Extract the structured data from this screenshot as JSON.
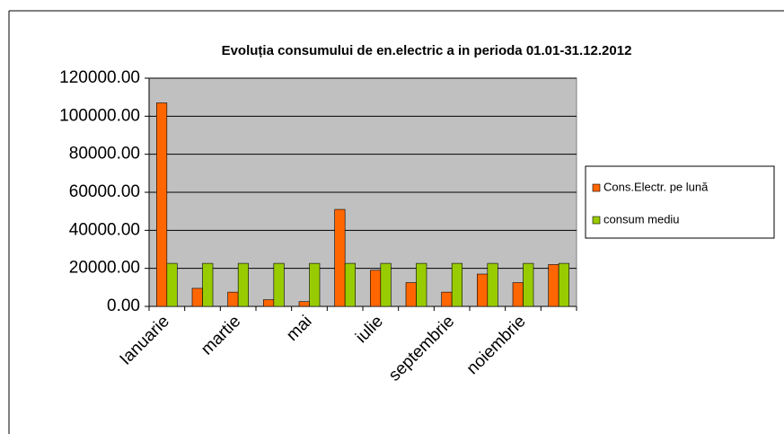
{
  "chart_data": {
    "type": "bar",
    "title": "Evoluția consumului  de en.electric a in perioda 01.01-31.12.2012",
    "categories": [
      "Ianuarie",
      null,
      "martie",
      null,
      "mai",
      null,
      "iulie",
      null,
      "septembrie",
      null,
      "noiembrie",
      null
    ],
    "series": [
      {
        "name": "Cons.Electr. pe lună",
        "color": "#ff6600",
        "values": [
          107000,
          9500,
          7500,
          3500,
          2500,
          51000,
          19000,
          12500,
          7500,
          17000,
          12500,
          22000
        ]
      },
      {
        "name": "consum mediu",
        "color": "#99cc00",
        "values": [
          22625,
          22625,
          22625,
          22625,
          22625,
          22625,
          22625,
          22625,
          22625,
          22625,
          22625,
          22625
        ]
      }
    ],
    "ylim": [
      0,
      120000
    ],
    "yticks": [
      {
        "value": 0,
        "label": "0.00"
      },
      {
        "value": 20000,
        "label": "20000.00"
      },
      {
        "value": 40000,
        "label": "40000.00"
      },
      {
        "value": 60000,
        "label": "60000.00"
      },
      {
        "value": 80000,
        "label": "80000.00"
      },
      {
        "value": 100000,
        "label": "100000.00"
      },
      {
        "value": 120000,
        "label": "120000.00"
      }
    ],
    "grid": true,
    "legend": "right"
  }
}
